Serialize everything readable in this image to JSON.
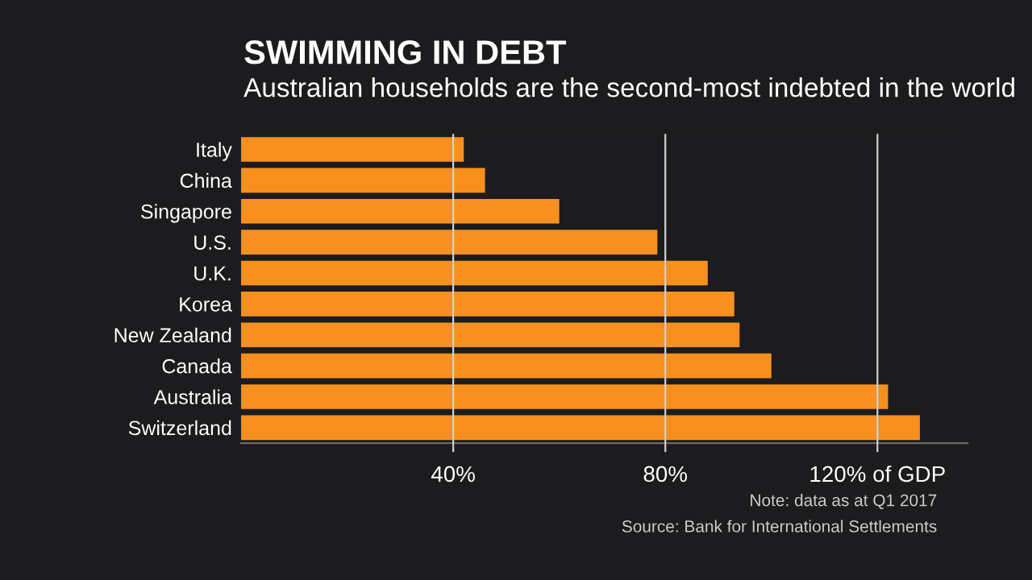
{
  "chart_data": {
    "type": "bar",
    "orientation": "horizontal",
    "title": "SWIMMING IN DEBT",
    "subtitle": "Australian households are the second-most indebted in the world",
    "categories": [
      "Italy",
      "China",
      "Singapore",
      "U.S.",
      "U.K.",
      "Korea",
      "New Zealand",
      "Canada",
      "Australia",
      "Switzerland"
    ],
    "values": [
      42,
      46,
      60,
      78.5,
      88,
      93,
      94,
      100,
      122,
      128
    ],
    "color": "#f7901e",
    "xlim": [
      0,
      137
    ],
    "xticks": [
      {
        "value": 40,
        "label": "40%"
      },
      {
        "value": 80,
        "label": "80%"
      },
      {
        "value": 120,
        "label": "120% of GDP"
      }
    ],
    "grid": "x",
    "annotations": [
      "Note: data as at Q1 2017",
      "Source: Bank for International Settlements"
    ]
  }
}
